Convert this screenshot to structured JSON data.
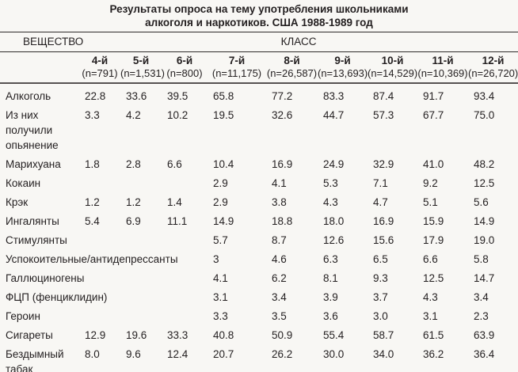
{
  "title": {
    "line1": "Результаты опроса на тему употребления школьниками",
    "line2": "алкоголя и наркотиков. США 1988-1989 год"
  },
  "table": {
    "substance_header": "ВЕЩЕСТВО",
    "class_header": "КЛАСС",
    "columns": [
      {
        "grade": "4-й",
        "n": "(n=791)"
      },
      {
        "grade": "5-й",
        "n": "(n=1,531)"
      },
      {
        "grade": "6-й",
        "n": "(n=800)"
      },
      {
        "grade": "7-й",
        "n": "(n=11,175)"
      },
      {
        "grade": "8-й",
        "n": "(n=26,587)"
      },
      {
        "grade": "9-й",
        "n": "(n=13,693)"
      },
      {
        "grade": "10-й",
        "n": "(n=14,529)"
      },
      {
        "grade": "11-й",
        "n": "(n=10,369)"
      },
      {
        "grade": "12-й",
        "n": "(n=26,720)"
      }
    ],
    "rows": [
      {
        "label": "Алкоголь",
        "values": [
          "22.8",
          "33.6",
          "39.5",
          "65.8",
          "77.2",
          "83.3",
          "87.4",
          "91.7",
          "93.4"
        ]
      },
      {
        "label": "Из них\nполучили\nопьянение",
        "values": [
          "3.3",
          "4.2",
          "10.2",
          "19.5",
          "32.6",
          "44.7",
          "57.3",
          "67.7",
          "75.0"
        ]
      },
      {
        "label": "Марихуана",
        "values": [
          "1.8",
          "2.8",
          "6.6",
          "10.4",
          "16.9",
          "24.9",
          "32.9",
          "41.0",
          "48.2"
        ]
      },
      {
        "label": "Кокаин",
        "wide_label": true,
        "values": [
          null,
          null,
          null,
          "2.9",
          "4.1",
          "5.3",
          "7.1",
          "9.2",
          "12.5"
        ]
      },
      {
        "label": "Крэк",
        "values": [
          "1.2",
          "1.2",
          "1.4",
          "2.9",
          "3.8",
          "4.3",
          "4.7",
          "5.1",
          "5.6"
        ]
      },
      {
        "label": "Ингалянты",
        "values": [
          "5.4",
          "6.9",
          "11.1",
          "14.9",
          "18.8",
          "18.0",
          "16.9",
          "15.9",
          "14.9"
        ]
      },
      {
        "label": "Стимулянты",
        "wide_label": true,
        "values": [
          null,
          null,
          null,
          "5.7",
          "8.7",
          "12.6",
          "15.6",
          "17.9",
          "19.0"
        ]
      },
      {
        "label": "Успокоительные/антидепрессанты",
        "wide_label": true,
        "values": [
          null,
          null,
          null,
          "3",
          "4.6",
          "6.3",
          "6.5",
          "6.6",
          "5.8"
        ]
      },
      {
        "label": "Галлюциногены",
        "wide_label": true,
        "values": [
          null,
          null,
          null,
          "4.1",
          "6.2",
          "8.1",
          "9.3",
          "12.5",
          "14.7"
        ]
      },
      {
        "label": "ФЦП (фенциклидин)",
        "wide_label": true,
        "values": [
          null,
          null,
          null,
          "3.1",
          "3.4",
          "3.9",
          "3.7",
          "4.3",
          "3.4"
        ]
      },
      {
        "label": "Героин",
        "wide_label": true,
        "values": [
          null,
          null,
          null,
          "3.3",
          "3.5",
          "3.6",
          "3.0",
          "3.1",
          "2.3"
        ]
      },
      {
        "label": "Сигареты",
        "values": [
          "12.9",
          "19.6",
          "33.3",
          "40.8",
          "50.9",
          "55.4",
          "58.7",
          "61.5",
          "63.9"
        ]
      },
      {
        "label": "Бездымный\nтабак",
        "values": [
          "8.0",
          "9.6",
          "12.4",
          "20.7",
          "26.2",
          "30.0",
          "34.0",
          "36.2",
          "36.4"
        ]
      }
    ]
  },
  "colors": {
    "background": "#f8f7f4",
    "text": "#231f20",
    "rule_thin": "#2e2b2a",
    "rule_thick": "#565251"
  }
}
